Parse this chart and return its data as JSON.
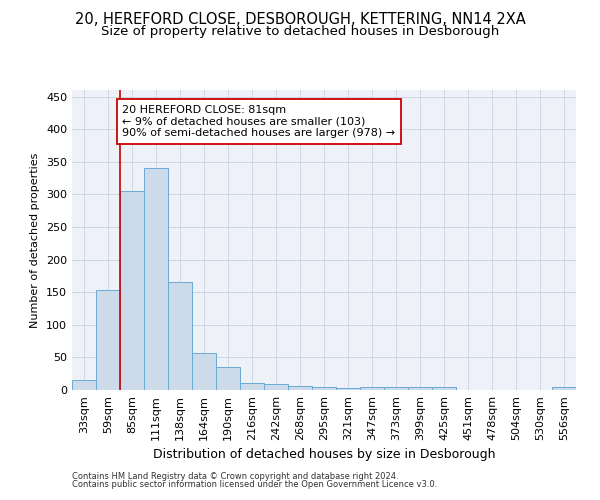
{
  "title1": "20, HEREFORD CLOSE, DESBOROUGH, KETTERING, NN14 2XA",
  "title2": "Size of property relative to detached houses in Desborough",
  "xlabel": "Distribution of detached houses by size in Desborough",
  "ylabel": "Number of detached properties",
  "bar_values": [
    16,
    153,
    305,
    340,
    165,
    57,
    35,
    10,
    9,
    6,
    4,
    3,
    5,
    5,
    5,
    5,
    0,
    0,
    0,
    0,
    5
  ],
  "bar_labels": [
    "33sqm",
    "59sqm",
    "85sqm",
    "111sqm",
    "138sqm",
    "164sqm",
    "190sqm",
    "216sqm",
    "242sqm",
    "268sqm",
    "295sqm",
    "321sqm",
    "347sqm",
    "373sqm",
    "399sqm",
    "425sqm",
    "451sqm",
    "478sqm",
    "504sqm",
    "530sqm",
    "556sqm"
  ],
  "bar_color": "#ccdaea",
  "bar_edgecolor": "#6aaad4",
  "vline_x": 2.0,
  "vline_color": "#cc0000",
  "annotation_text": "20 HEREFORD CLOSE: 81sqm\n← 9% of detached houses are smaller (103)\n90% of semi-detached houses are larger (978) →",
  "annotation_box_color": "#ffffff",
  "annotation_box_edgecolor": "#cc0000",
  "ylim": [
    0,
    460
  ],
  "yticks": [
    0,
    50,
    100,
    150,
    200,
    250,
    300,
    350,
    400,
    450
  ],
  "grid_color": "#c8d4e0",
  "bg_color": "#eef2f8",
  "footer1": "Contains HM Land Registry data © Crown copyright and database right 2024.",
  "footer2": "Contains public sector information licensed under the Open Government Licence v3.0.",
  "title1_fontsize": 10.5,
  "title2_fontsize": 9.5,
  "xlabel_fontsize": 9,
  "ylabel_fontsize": 8,
  "tick_fontsize": 8,
  "annot_fontsize": 8,
  "footer_fontsize": 6
}
